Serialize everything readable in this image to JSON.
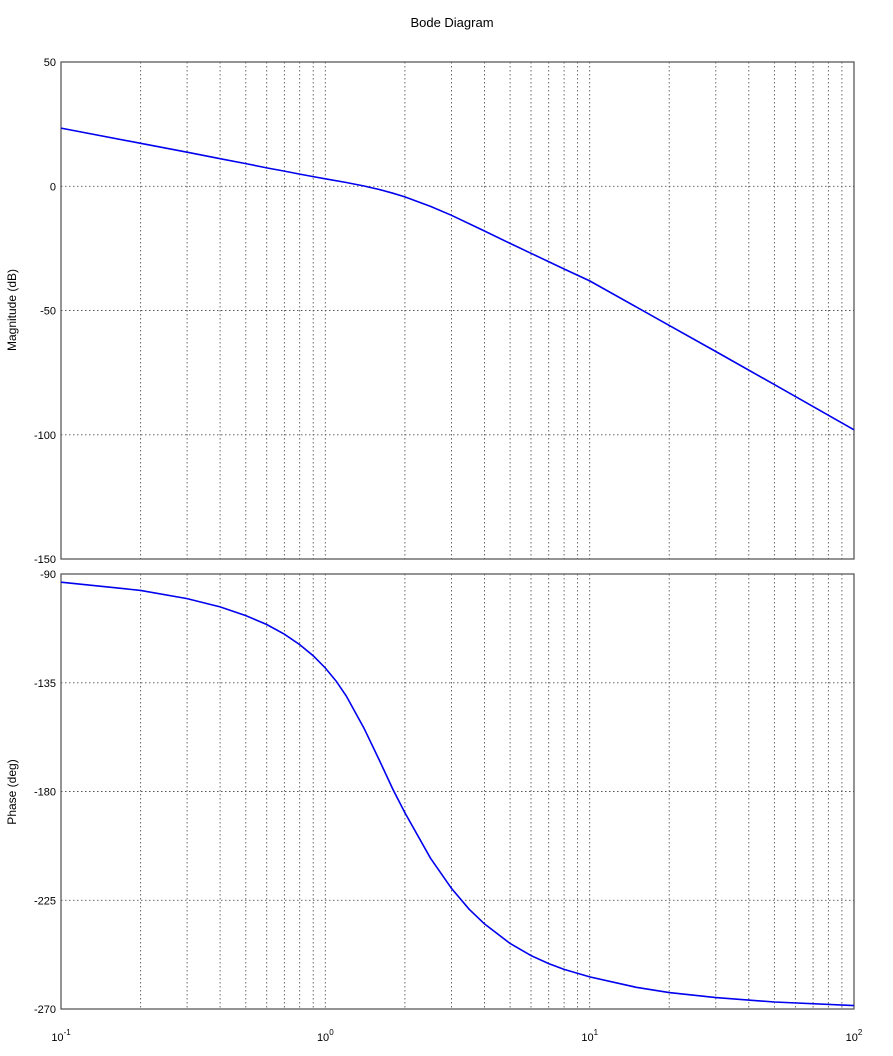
{
  "chart_data": {
    "title": "Bode Diagram",
    "x_scale": "log",
    "xlim": [
      0.1,
      100
    ],
    "x_ticks": [
      {
        "mant": "10",
        "exp": "-1"
      },
      {
        "mant": "10",
        "exp": "0"
      },
      {
        "mant": "10",
        "exp": "1"
      },
      {
        "mant": "10",
        "exp": "2"
      }
    ],
    "grid": true,
    "panels": [
      {
        "type": "line",
        "ylabel": "Magnitude (dB)",
        "ylim": [
          -150,
          50
        ],
        "yticks": [
          "50",
          "0",
          "-50",
          "-100",
          "-150"
        ],
        "color": "#0000ee",
        "x": [
          0.1,
          0.2,
          0.3,
          0.4,
          0.5,
          0.6,
          0.7,
          0.8,
          0.9,
          1.0,
          1.2,
          1.4,
          1.6,
          1.8,
          2.0,
          2.5,
          3.0,
          4.0,
          5.0,
          6.0,
          8.0,
          10.0,
          20.0,
          30.0,
          50.0,
          100.0
        ],
        "y": [
          23.4,
          17.3,
          13.7,
          11.1,
          9.1,
          7.4,
          6.1,
          4.9,
          3.9,
          3.0,
          1.5,
          0.1,
          -1.3,
          -2.8,
          -4.3,
          -8.1,
          -11.7,
          -18.0,
          -23.0,
          -27.0,
          -33.3,
          -38.1,
          -56.0,
          -66.5,
          -79.8,
          -98.0
        ]
      },
      {
        "type": "line",
        "ylabel": "Phase (deg)",
        "ylim": [
          -270,
          -90
        ],
        "yticks": [
          "-90",
          "-135",
          "-180",
          "-225",
          "-270"
        ],
        "color": "#0000ee",
        "x": [
          0.1,
          0.2,
          0.3,
          0.4,
          0.5,
          0.6,
          0.7,
          0.8,
          0.9,
          1.0,
          1.1,
          1.2,
          1.4,
          1.6,
          1.8,
          2.0,
          2.5,
          3.0,
          3.5,
          4.0,
          5.0,
          6.0,
          7.0,
          8.0,
          10.0,
          15.0,
          20.0,
          30.0,
          50.0,
          100.0
        ],
        "y": [
          -93.4,
          -96.8,
          -100.2,
          -103.6,
          -107.2,
          -110.9,
          -114.9,
          -119.2,
          -123.8,
          -128.9,
          -134.4,
          -140.5,
          -153.8,
          -167.0,
          -179.0,
          -188.8,
          -207.6,
          -220.1,
          -228.7,
          -234.8,
          -242.9,
          -247.9,
          -251.2,
          -253.6,
          -256.7,
          -261.0,
          -263.2,
          -265.3,
          -267.1,
          -268.6
        ]
      }
    ]
  }
}
